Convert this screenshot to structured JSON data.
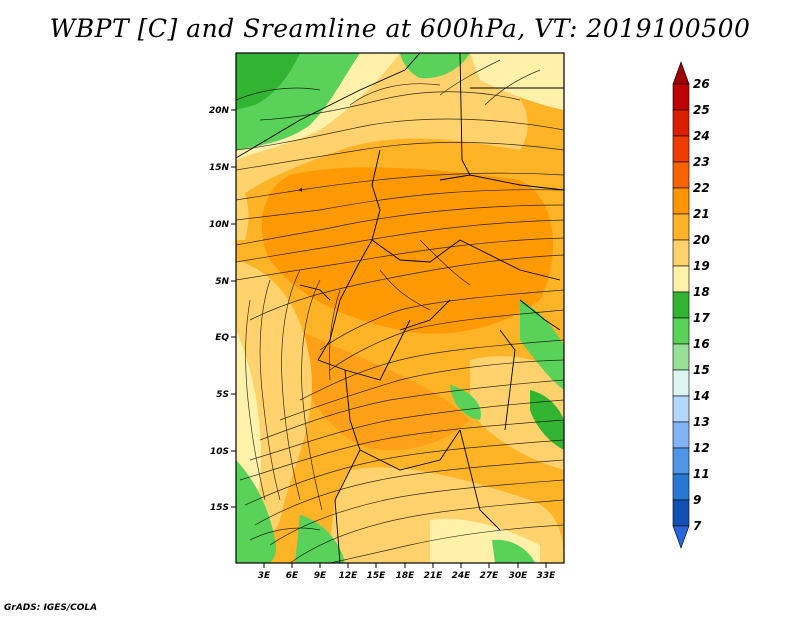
{
  "title": "WBPT [C] and Sreamline at 600hPa, VT: 2019100500",
  "credit": "GrADS: IGES/COLA",
  "map": {
    "region": "Central Africa",
    "lon_labels": [
      "3E",
      "6E",
      "9E",
      "12E",
      "15E",
      "18E",
      "21E",
      "24E",
      "27E",
      "30E",
      "33E"
    ],
    "lat_labels": [
      "20N",
      "15N",
      "10N",
      "5N",
      "EQ",
      "5S",
      "10S",
      "15S"
    ],
    "lon_range": [
      0,
      35
    ],
    "lat_range": [
      -20,
      24
    ]
  },
  "colorbar": {
    "levels": [
      "26",
      "25",
      "24",
      "23",
      "22",
      "21",
      "20",
      "19",
      "18",
      "17",
      "16",
      "15",
      "14",
      "13",
      "12",
      "11",
      "9",
      "7"
    ],
    "colors": [
      "#c00000",
      "#dc1e00",
      "#f03c00",
      "#fa6400",
      "#ff9600",
      "#ffb428",
      "#ffd26e",
      "#fff0aa",
      "#32b432",
      "#5ad25a",
      "#96e196",
      "#dcf5f0",
      "#b4d7ff",
      "#82b4f5",
      "#5096e6",
      "#2878d2",
      "#1450b4"
    ],
    "top_arrow_color": "#a00000",
    "bottom_arrow_color": "#2864dc"
  }
}
